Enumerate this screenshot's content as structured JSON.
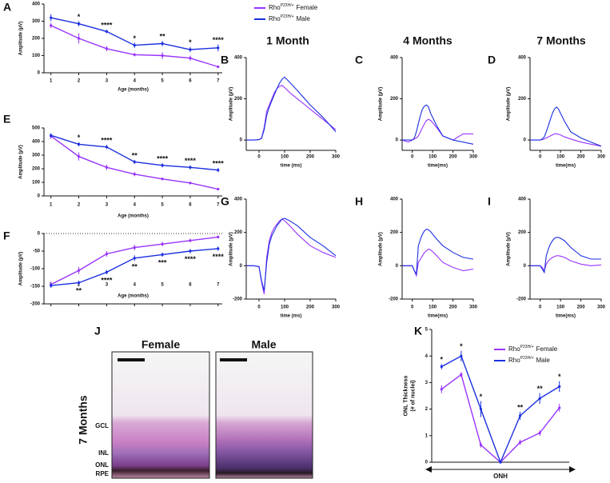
{
  "legends": [
    {
      "entries": [
        {
          "base": "Rho",
          "sup": "P23H/+",
          "rest": "Female"
        },
        {
          "base": "Rho",
          "sup": "P23H/+",
          "rest": "Male"
        }
      ]
    },
    {
      "entries": [
        {
          "base": "Rho",
          "sup": "P23H/+",
          "rest": "Female"
        },
        {
          "base": "Rho",
          "sup": "P23H/+",
          "rest": "Male"
        }
      ]
    }
  ],
  "panel_j": {
    "label": "J",
    "female": "Female",
    "male": "Male",
    "row": "7 Months",
    "layers": [
      "GCL",
      "INL",
      "ONL",
      "RPE"
    ]
  },
  "chart_data": [
    {
      "type": "line",
      "label": "A",
      "xlabel": "Age (months)",
      "ylabel": [
        "Amplitude (µV)"
      ],
      "markers": true,
      "x": [
        1,
        2,
        3,
        4,
        5,
        6,
        7
      ],
      "xlim": [
        0.75,
        7.15
      ],
      "xticks": [
        1,
        2,
        3,
        4,
        5,
        6,
        7
      ],
      "ylim": [
        0,
        400
      ],
      "yticks": [
        0,
        100,
        200,
        300,
        400
      ],
      "series": [
        {
          "color": "#9933ff",
          "values": [
            275,
            200,
            140,
            105,
            100,
            85,
            35
          ],
          "errors": [
            15,
            30,
            15,
            10,
            20,
            15,
            5
          ]
        },
        {
          "color": "#1a2fe0",
          "values": [
            320,
            285,
            240,
            160,
            170,
            135,
            145
          ],
          "errors": [
            20,
            15,
            10,
            15,
            15,
            15,
            20
          ]
        }
      ],
      "annotations": [
        null,
        "*",
        "****",
        "*",
        "**",
        "*",
        "****"
      ],
      "annotation_position": "above"
    },
    {
      "type": "line",
      "label": "E",
      "xlabel": "Age (months)",
      "ylabel": [
        "Amplitude (µV)"
      ],
      "markers": true,
      "x": [
        1,
        2,
        3,
        4,
        5,
        6,
        7
      ],
      "xlim": [
        0.75,
        7.15
      ],
      "xticks": [
        1,
        2,
        3,
        4,
        5,
        6,
        7
      ],
      "ylim": [
        0,
        500
      ],
      "yticks": [
        0,
        100,
        200,
        300,
        400,
        500
      ],
      "series": [
        {
          "color": "#9933ff",
          "values": [
            440,
            290,
            210,
            160,
            125,
            95,
            50
          ],
          "errors": [
            20,
            30,
            20,
            15,
            10,
            10,
            5
          ]
        },
        {
          "color": "#1a2fe0",
          "values": [
            445,
            380,
            360,
            250,
            225,
            210,
            190
          ],
          "errors": [
            15,
            15,
            15,
            15,
            15,
            15,
            15
          ]
        }
      ],
      "annotations": [
        null,
        "*",
        "****",
        "**",
        "****",
        "****",
        "****"
      ],
      "annotation_position": "above"
    },
    {
      "type": "line",
      "label": "F",
      "xlabel": "Age (months)",
      "ylabel": [
        "Amplitude (µV)"
      ],
      "markers": true,
      "zero_line": true,
      "x": [
        1,
        2,
        3,
        4,
        5,
        6,
        7
      ],
      "xlim": [
        0.75,
        7.15
      ],
      "xticks": [
        1,
        2,
        3,
        4,
        5,
        6,
        7
      ],
      "ylim": [
        -200,
        0
      ],
      "yticks": [
        -200,
        -150,
        -100,
        -50,
        0
      ],
      "series": [
        {
          "color": "#9933ff",
          "values": [
            -145,
            -105,
            -58,
            -40,
            -30,
            -20,
            -10
          ],
          "errors": [
            8,
            10,
            8,
            8,
            6,
            5,
            4
          ]
        },
        {
          "color": "#1a2fe0",
          "values": [
            -148,
            -140,
            -110,
            -70,
            -60,
            -50,
            -43
          ],
          "errors": [
            6,
            6,
            6,
            8,
            6,
            6,
            6
          ]
        }
      ],
      "annotations": [
        null,
        "**",
        "****",
        "**",
        "***",
        "****",
        "****"
      ],
      "annotation_position": "below"
    },
    {
      "type": "line",
      "label": "B",
      "title": "1 Month",
      "xlabel": "time (ms)",
      "ylabel": [
        "Amplitude (µV)"
      ],
      "x": [
        -50,
        -20,
        0,
        10,
        20,
        30,
        40,
        50,
        60,
        70,
        80,
        90,
        100,
        120,
        150,
        200,
        250,
        300
      ],
      "xlim": [
        -50,
        300
      ],
      "xticks": [
        0,
        100,
        200,
        300
      ],
      "ylim": [
        -50,
        400
      ],
      "yticks": [
        0,
        200,
        400
      ],
      "series": [
        {
          "color": "#9933ff",
          "values": [
            0,
            0,
            2,
            10,
            60,
            140,
            170,
            200,
            230,
            250,
            260,
            265,
            255,
            230,
            200,
            150,
            100,
            50
          ]
        },
        {
          "color": "#1a2fe0",
          "values": [
            0,
            0,
            2,
            8,
            50,
            120,
            160,
            190,
            220,
            250,
            275,
            295,
            305,
            280,
            240,
            170,
            110,
            40
          ]
        }
      ]
    },
    {
      "type": "line",
      "label": "C",
      "title": "4 Months",
      "xlabel": "time(ms)",
      "ylabel": [
        "Amplitude (µV)"
      ],
      "x": [
        -50,
        -20,
        0,
        10,
        20,
        30,
        40,
        50,
        60,
        70,
        80,
        90,
        100,
        120,
        150,
        200,
        250,
        300
      ],
      "xlim": [
        -50,
        300
      ],
      "xticks": [
        0,
        100,
        200,
        300
      ],
      "ylim": [
        -50,
        400
      ],
      "yticks": [
        0,
        200,
        400
      ],
      "series": [
        {
          "color": "#9933ff",
          "values": [
            0,
            -10,
            0,
            5,
            10,
            20,
            40,
            60,
            80,
            95,
            100,
            95,
            85,
            60,
            20,
            0,
            30,
            30
          ]
        },
        {
          "color": "#1a2fe0",
          "values": [
            0,
            0,
            0,
            10,
            40,
            80,
            120,
            150,
            165,
            170,
            160,
            130,
            110,
            70,
            20,
            0,
            -10,
            -20
          ]
        }
      ]
    },
    {
      "type": "line",
      "label": "D",
      "title": "7 Months",
      "xlabel": "time(ms)",
      "ylabel": [
        "Amplitude (µV)"
      ],
      "x": [
        -50,
        -20,
        0,
        10,
        20,
        30,
        40,
        50,
        60,
        70,
        80,
        90,
        100,
        120,
        150,
        200,
        250,
        300
      ],
      "xlim": [
        -50,
        300
      ],
      "xticks": [
        0,
        100,
        200,
        300
      ],
      "ylim": [
        -50,
        400
      ],
      "yticks": [
        0,
        200,
        400
      ],
      "series": [
        {
          "color": "#9933ff",
          "values": [
            0,
            0,
            0,
            2,
            5,
            10,
            15,
            20,
            25,
            30,
            30,
            28,
            25,
            15,
            5,
            -10,
            -20,
            -30
          ]
        },
        {
          "color": "#1a2fe0",
          "values": [
            0,
            0,
            0,
            5,
            15,
            40,
            70,
            100,
            130,
            150,
            160,
            150,
            130,
            90,
            40,
            10,
            -10,
            -30
          ]
        }
      ]
    },
    {
      "type": "line",
      "label": "G",
      "xlabel": "time (ms)",
      "ylabel": [
        "Amplitude (µV)"
      ],
      "x": [
        -50,
        -20,
        0,
        10,
        20,
        30,
        40,
        50,
        60,
        70,
        80,
        90,
        100,
        120,
        150,
        200,
        250,
        300
      ],
      "xlim": [
        -50,
        300
      ],
      "xticks": [
        0,
        100,
        200,
        300
      ],
      "ylim": [
        -200,
        400
      ],
      "yticks": [
        -200,
        0,
        200,
        400
      ],
      "series": [
        {
          "color": "#9933ff",
          "values": [
            0,
            0,
            -5,
            -100,
            -170,
            50,
            150,
            200,
            230,
            250,
            270,
            280,
            270,
            240,
            190,
            120,
            80,
            50
          ]
        },
        {
          "color": "#1a2fe0",
          "values": [
            0,
            0,
            -5,
            -90,
            -150,
            20,
            130,
            180,
            210,
            240,
            260,
            280,
            285,
            270,
            240,
            170,
            120,
            60
          ]
        }
      ]
    },
    {
      "type": "line",
      "label": "H",
      "xlabel": "time(ms)",
      "ylabel": [
        "Amplitude (µV)"
      ],
      "x": [
        -50,
        -20,
        0,
        10,
        20,
        30,
        40,
        50,
        60,
        70,
        80,
        90,
        100,
        120,
        150,
        200,
        250,
        300
      ],
      "xlim": [
        -50,
        300
      ],
      "xticks": [
        0,
        100,
        200,
        300
      ],
      "ylim": [
        -200,
        400
      ],
      "yticks": [
        -200,
        0,
        200,
        400
      ],
      "series": [
        {
          "color": "#9933ff",
          "values": [
            0,
            0,
            0,
            -30,
            -60,
            20,
            40,
            60,
            80,
            90,
            100,
            95,
            85,
            60,
            20,
            -10,
            -30,
            -20
          ]
        },
        {
          "color": "#1a2fe0",
          "values": [
            0,
            0,
            0,
            -30,
            -50,
            120,
            160,
            190,
            210,
            220,
            215,
            205,
            190,
            160,
            120,
            80,
            50,
            40
          ]
        }
      ]
    },
    {
      "type": "line",
      "label": "I",
      "xlabel": "time(ms)",
      "ylabel": [
        "Amplitude (µV)"
      ],
      "x": [
        -50,
        -20,
        0,
        10,
        20,
        30,
        40,
        50,
        60,
        70,
        80,
        90,
        100,
        120,
        150,
        200,
        250,
        300
      ],
      "xlim": [
        -50,
        300
      ],
      "xticks": [
        0,
        100,
        200,
        300
      ],
      "ylim": [
        -200,
        400
      ],
      "yticks": [
        -200,
        0,
        200,
        400
      ],
      "series": [
        {
          "color": "#9933ff",
          "values": [
            0,
            0,
            0,
            -10,
            -30,
            10,
            30,
            40,
            50,
            55,
            60,
            60,
            58,
            50,
            30,
            10,
            0,
            5
          ]
        },
        {
          "color": "#1a2fe0",
          "values": [
            0,
            0,
            0,
            -20,
            -40,
            60,
            100,
            130,
            150,
            165,
            170,
            170,
            165,
            150,
            110,
            60,
            40,
            40
          ]
        }
      ]
    },
    {
      "type": "line",
      "label": "K",
      "xlabel": "ONH",
      "x_arrow": true,
      "ylabel": [
        "ONL Thickness",
        "(# of nuclei)"
      ],
      "markers": true,
      "categories": [
        null,
        null,
        null,
        null,
        null,
        null,
        null
      ],
      "ylim": [
        0,
        5
      ],
      "yticks": [
        0,
        1,
        2,
        3,
        4,
        5
      ],
      "series": [
        {
          "color": "#9933ff",
          "values": [
            2.75,
            3.3,
            0.65,
            0,
            0.75,
            1.1,
            2.05
          ],
          "errors": [
            0.15,
            0.1,
            0.1,
            0,
            0.1,
            0.1,
            0.15
          ]
        },
        {
          "color": "#1a2fe0",
          "values": [
            3.6,
            4.0,
            2.0,
            0,
            1.75,
            2.4,
            2.85
          ],
          "errors": [
            0.1,
            0.2,
            0.3,
            0,
            0.15,
            0.2,
            0.2
          ]
        }
      ],
      "annotations": [
        "*",
        "*",
        "*",
        null,
        "**",
        "**",
        "*"
      ],
      "annotation_position": "above"
    }
  ]
}
